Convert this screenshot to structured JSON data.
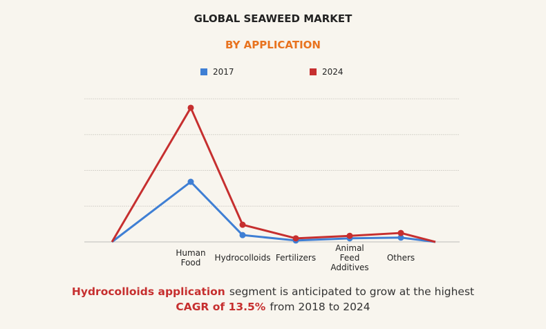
{
  "chart_data": {
    "type": "line",
    "title": "GLOBAL SEAWEED MARKET",
    "subtitle": "BY APPLICATION",
    "categories": [
      null,
      "Human Food",
      "Hydrocolloids",
      "Fertilizers",
      "Animal Feed Additives",
      "Others",
      null
    ],
    "series": [
      {
        "name": "2017",
        "color": "#3f7fd4",
        "values": [
          0,
          1.68,
          0.19,
          0.04,
          0.1,
          0.12,
          0
        ]
      },
      {
        "name": "2024",
        "color": "#c62f2f",
        "values": [
          0,
          3.75,
          0.48,
          0.1,
          0.17,
          0.25,
          0
        ]
      }
    ],
    "ylim": [
      0,
      4
    ],
    "yticks": [
      0,
      1,
      2,
      3,
      4
    ],
    "grid": true,
    "legend": "top",
    "annotation": {
      "highlight1": "Hydrocolloids application",
      "text1": "segment is anticipated to grow at the highest",
      "highlight2": "CAGR of 13.5%",
      "text2": "from 2018 to 2024"
    }
  }
}
